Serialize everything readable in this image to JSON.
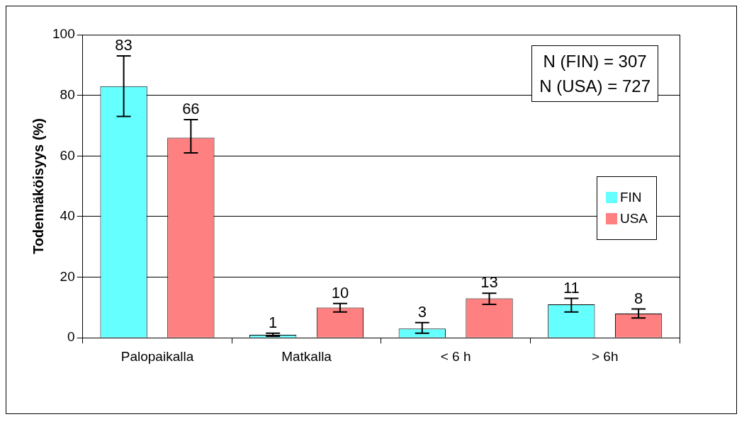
{
  "chart_data": {
    "type": "bar",
    "ylabel": "Todennäköisyys (%)",
    "categories": [
      "Palopaikalla",
      "Matkalla",
      "< 6 h",
      "> 6h"
    ],
    "series": [
      {
        "name": "FIN",
        "color": "#66ffff",
        "values": [
          83,
          1,
          3,
          11
        ],
        "errors": [
          [
            73,
            93
          ],
          [
            0.5,
            1.5
          ],
          [
            1.5,
            5
          ],
          [
            8.5,
            13
          ]
        ]
      },
      {
        "name": "USA",
        "color": "#ff8080",
        "values": [
          66,
          10,
          13,
          8
        ],
        "errors": [
          [
            61,
            72
          ],
          [
            8.5,
            11.3
          ],
          [
            11,
            14.7
          ],
          [
            6.5,
            9.5
          ]
        ]
      }
    ],
    "ylim": [
      0,
      100
    ],
    "yticks": [
      0,
      20,
      40,
      60,
      80,
      100
    ],
    "grid": "y",
    "legend": "right",
    "data_labels": true,
    "annotations": [
      "N (FIN) = 307",
      "N (USA) = 727"
    ]
  }
}
